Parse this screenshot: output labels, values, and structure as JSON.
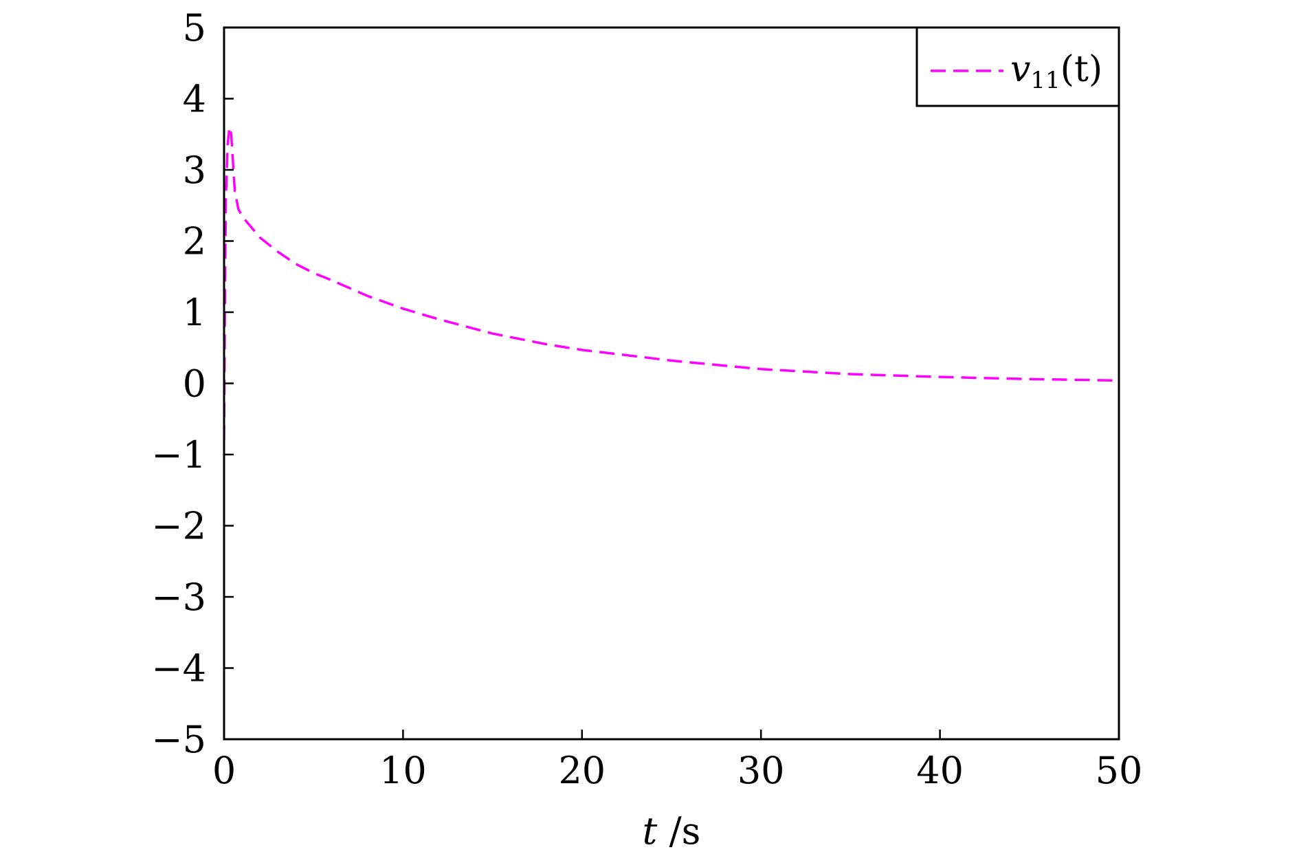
{
  "chart_data": {
    "type": "line",
    "title": "",
    "xlabel": "t /s",
    "xlabel_parts": {
      "var": "t",
      "unit": " /s"
    },
    "ylabel": "",
    "xlim": [
      0,
      50
    ],
    "ylim": [
      -5,
      5
    ],
    "xticks": [
      0,
      10,
      20,
      30,
      40,
      50
    ],
    "xtick_labels": [
      "0",
      "10",
      "20",
      "30",
      "40",
      "50"
    ],
    "yticks": [
      5,
      4,
      3,
      2,
      1,
      0,
      -1,
      -2,
      -3,
      -4,
      -5
    ],
    "ytick_labels": [
      "5",
      "4",
      "3",
      "2",
      "1",
      "0",
      "−1",
      "−2",
      "−3",
      "−4",
      "−5"
    ],
    "grid": false,
    "legend": {
      "placement": "top-right",
      "entries": [
        "v11(t)"
      ]
    },
    "legend_parts": {
      "var": "v",
      "sub": "11",
      "arg": "(t)"
    },
    "series": [
      {
        "name": "v11(t)",
        "color": "#ff00ff",
        "style": "dashed",
        "x": [
          0,
          0.05,
          0.1,
          0.2,
          0.3,
          0.4,
          0.5,
          0.6,
          0.8,
          1.0,
          1.5,
          2,
          3,
          4,
          5,
          6,
          8,
          10,
          12,
          15,
          18,
          20,
          25,
          30,
          35,
          40,
          45,
          50
        ],
        "y": [
          -0.8,
          1.2,
          2.6,
          3.35,
          3.6,
          3.5,
          3.1,
          2.7,
          2.45,
          2.35,
          2.2,
          2.05,
          1.85,
          1.68,
          1.55,
          1.45,
          1.23,
          1.05,
          0.9,
          0.7,
          0.55,
          0.47,
          0.32,
          0.2,
          0.13,
          0.09,
          0.06,
          0.04
        ]
      }
    ]
  }
}
